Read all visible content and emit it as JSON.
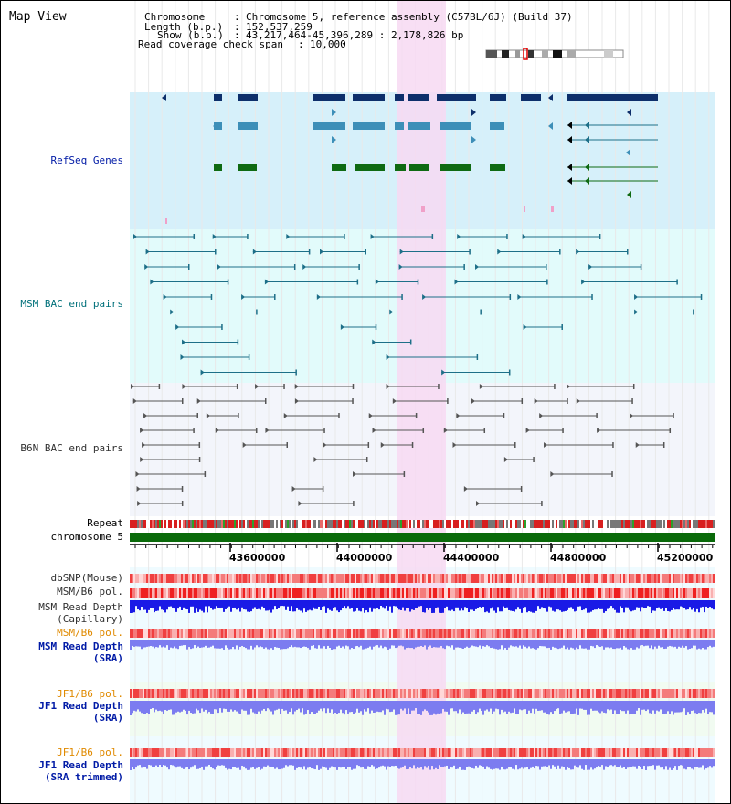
{
  "title": "Map View",
  "info": {
    "chromosome_key": "Chromosome",
    "chromosome_value": "Chromosome 5, reference assembly (C57BL/6J) (Build 37)",
    "length_key": "Length (b.p.)",
    "length_value": "152,537,259",
    "show_key": "Show (b.p.)",
    "show_value": "43,217,464-45,396,289 : 2,178,826 bp",
    "coverage_key": "Read coverage check span",
    "coverage_value": "10,000"
  },
  "tracks": {
    "refseq": "RefSeq Genes",
    "msm_bac": "MSM BAC end pairs",
    "b6n_bac": "B6N BAC end pairs",
    "repeat": "Repeat",
    "chromosome": "chromosome 5",
    "dbsnp": "dbSNP(Mouse)",
    "msm_b6_pol_1": "MSM/B6 pol.",
    "msm_read_depth_cap_1": "MSM Read Depth",
    "msm_read_depth_cap_2": "(Capillary)",
    "msm_b6_pol_2": "MSM/B6 pol.",
    "msm_read_depth_sra_1": "MSM Read Depth",
    "msm_read_depth_sra_2": "(SRA)",
    "jf1_b6_pol_1": "JF1/B6 pol.",
    "jf1_read_depth_sra_1": "JF1 Read Depth",
    "jf1_read_depth_sra_2": "(SRA)",
    "jf1_b6_pol_2": "JF1/B6 pol.",
    "jf1_read_depth_trim_1": "JF1 Read Depth",
    "jf1_read_depth_trim_2": "(SRA trimmed)"
  },
  "axis": {
    "ticks": [
      "43600000",
      "44000000",
      "44400000",
      "44800000",
      "45200000"
    ]
  },
  "colors": {
    "refseq_bg": "#d6f0fa",
    "msm_bg": "#e2fbfb",
    "b6n_bg": "#f3f5fb",
    "highlight": "#f7d9f2",
    "gene_dark": "#0d2f6b",
    "gene_mid": "#3d8fb8",
    "gene_green": "#0f6a12",
    "msm_line": "#1d6f88",
    "b6n_line": "#555555",
    "chromosome": "#0a6a0a",
    "snp_red": "#f04040",
    "depth_blue": "#1a1ae6",
    "depth_light": "#7c7cf0",
    "label_blue": "#001aa6",
    "label_teal": "#00707a",
    "label_orange": "#e08a00",
    "label_gray": "#303030"
  }
}
